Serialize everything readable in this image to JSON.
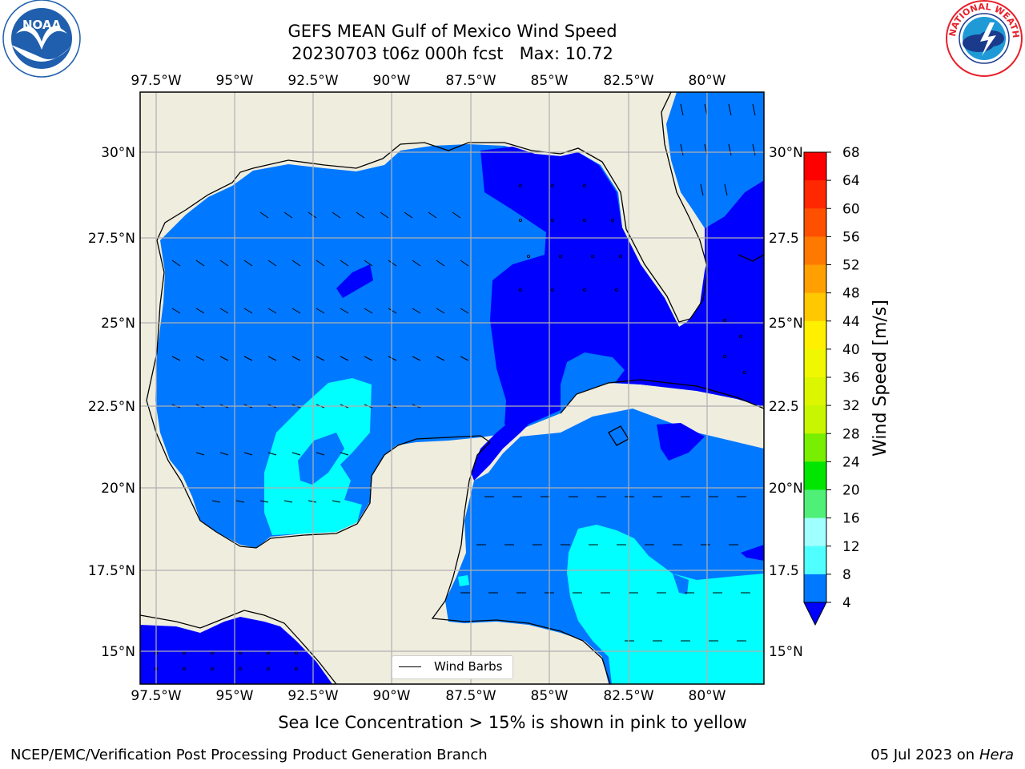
{
  "title": {
    "line1": "GEFS MEAN Gulf of Mexico Wind Speed",
    "line2": "20230703 t06z 000h fcst   Max: 10.72"
  },
  "logos": {
    "noaa": {
      "text": "NOAA",
      "ring_text": "NATIONAL OCEANIC AND ATMOSPHERIC ADMINISTRATION · U.S. DEPARTMENT OF COMMERCE",
      "color": "#1f5fae"
    },
    "nws": {
      "ring_text": "NATIONAL WEATHER SERVICE",
      "color": "#e8202a"
    }
  },
  "map": {
    "lon_labels": [
      "97.5°W",
      "95°W",
      "92.5°W",
      "90°W",
      "87.5°W",
      "85°W",
      "82.5°W",
      "80°W"
    ],
    "lat_labels": [
      "30°N",
      "27.5°N",
      "25°N",
      "22.5°N",
      "20°N",
      "17.5°N",
      "15°N"
    ],
    "lat_labels_right": [
      "30°N",
      "27.5",
      "25°N",
      "22.5",
      "20°N",
      "17.5",
      "15°N"
    ],
    "extent": {
      "lon_min": -98,
      "lon_max": -78.2,
      "lat_min": 14,
      "lat_max": 31.8
    },
    "land_color": "#efedde",
    "grid_color": "#b0b0b0",
    "legend_label": "Wind Barbs"
  },
  "colorbar": {
    "label": "Wind Speed [m/s]",
    "ticks": [
      "68",
      "64",
      "60",
      "56",
      "52",
      "48",
      "44",
      "40",
      "36",
      "32",
      "28",
      "24",
      "20",
      "16",
      "12",
      "8",
      "4"
    ],
    "colors": [
      "#ff0000",
      "#ff2800",
      "#ff5000",
      "#ff7800",
      "#ff9f00",
      "#ffc800",
      "#fff000",
      "#f0f700",
      "#dcf600",
      "#c8f500",
      "#78ee00",
      "#00e600",
      "#00c800",
      "#50f078",
      "#a0ffff",
      "#50ffff",
      "#00ffff",
      "#0078ff"
    ],
    "extend_color": "#0000ff"
  },
  "note": "Sea Ice Concentration > 15% is shown in pink to yellow",
  "footer": {
    "left": "NCEP/EMC/Verification Post Processing Product Generation Branch",
    "date": "05 Jul 2023 on ",
    "host": "Hera"
  }
}
